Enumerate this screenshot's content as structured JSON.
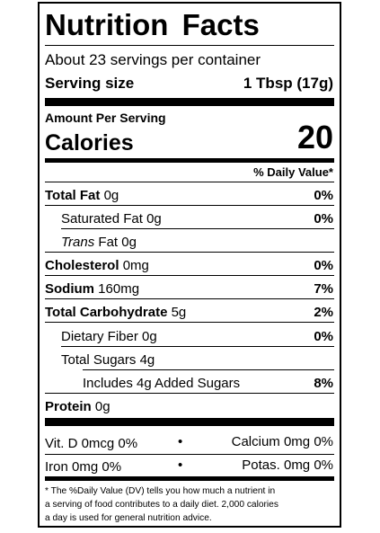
{
  "title": "Nutrition Facts",
  "servings_per_container": "About 23 servings per container",
  "serving_size": {
    "label": "Serving size",
    "value": "1 Tbsp (17g)"
  },
  "amount_per_serving": "Amount Per Serving",
  "calories": {
    "label": "Calories",
    "value": "20"
  },
  "daily_value_header": "% Daily Value*",
  "nutrients": {
    "total_fat": {
      "label": "Total Fat",
      "amount": "0g",
      "dv": "0%"
    },
    "saturated_fat": {
      "label": "Saturated Fat",
      "amount": "0g",
      "dv": "0%"
    },
    "trans_fat": {
      "label_italic": "Trans",
      "label": "Fat",
      "amount": "0g"
    },
    "cholesterol": {
      "label": "Cholesterol",
      "amount": "0mg",
      "dv": "0%"
    },
    "sodium": {
      "label": "Sodium",
      "amount": "160mg",
      "dv": "7%"
    },
    "total_carbohydrate": {
      "label": "Total Carbohydrate",
      "amount": "5g",
      "dv": "2%"
    },
    "dietary_fiber": {
      "label": "Dietary Fiber",
      "amount": "0g",
      "dv": "0%"
    },
    "total_sugars": {
      "label": "Total Sugars",
      "amount": "4g"
    },
    "added_sugars": {
      "label": "Includes 4g Added Sugars",
      "dv": "8%"
    },
    "protein": {
      "label": "Protein",
      "amount": "0g"
    }
  },
  "vitamins": {
    "vit_d": "Vit. D 0mcg 0%",
    "calcium": "Calcium 0mg 0%",
    "iron": "Iron 0mg 0%",
    "potassium": "Potas. 0mg 0%",
    "separator": "•"
  },
  "footnote": {
    "line1": "* The %Daily Value (DV) tells you how much a nutrient in",
    "line2": "a serving of food contributes to a daily diet. 2,000 calories",
    "line3": "a day is used for general nutrition advice."
  }
}
